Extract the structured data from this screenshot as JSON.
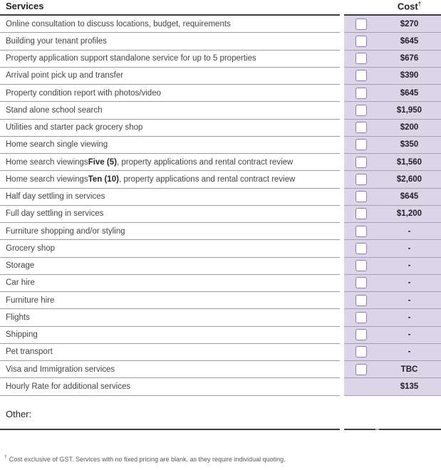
{
  "colors": {
    "lavender_bg": "#dcd5e8",
    "checkbox_border": "#8b7bc0",
    "header_rule": "#3c3c3c",
    "row_rule_white_area": "#9c9c9c",
    "row_rule_lavender_area": "#a59fb2",
    "service_text": "#44444a",
    "cost_text": "#1e1e26",
    "footnote_text": "#58585e"
  },
  "header": {
    "services_label": "Services",
    "cost_label": "Cost",
    "cost_superscript": "†"
  },
  "rows": [
    {
      "pre": "Online consultation to discuss locations, budget, requirements",
      "bold": "",
      "post": "",
      "cost": "$270",
      "checkbox": true
    },
    {
      "pre": "Building your tenant profiles",
      "bold": "",
      "post": "",
      "cost": "$645",
      "checkbox": true
    },
    {
      "pre": "Property application support standalone service for up to 5 properties",
      "bold": "",
      "post": "",
      "cost": "$676",
      "checkbox": true
    },
    {
      "pre": "Arrival point pick up and transfer",
      "bold": "",
      "post": "",
      "cost": "$390",
      "checkbox": true
    },
    {
      "pre": "Property condition report with photos/video",
      "bold": "",
      "post": "",
      "cost": "$645",
      "checkbox": true
    },
    {
      "pre": "Stand alone school search",
      "bold": "",
      "post": "",
      "cost": "$1,950",
      "checkbox": true
    },
    {
      "pre": "Utilities and starter pack grocery shop",
      "bold": "",
      "post": "",
      "cost": "$200",
      "checkbox": true
    },
    {
      "pre": "Home search single viewing",
      "bold": "",
      "post": "",
      "cost": "$350",
      "checkbox": true
    },
    {
      "pre": "Home search viewings ",
      "bold": "Five (5)",
      "post": ", property applications and rental contract review",
      "cost": "$1,560",
      "checkbox": true
    },
    {
      "pre": "Home search viewings ",
      "bold": "Ten (10)",
      "post": ", property applications and rental contract review",
      "cost": "$2,600",
      "checkbox": true
    },
    {
      "pre": "Half day settling in services",
      "bold": "",
      "post": "",
      "cost": "$645",
      "checkbox": true
    },
    {
      "pre": "Full day settling in services",
      "bold": "",
      "post": "",
      "cost": "$1,200",
      "checkbox": true
    },
    {
      "pre": "Furniture shopping and/or styling",
      "bold": "",
      "post": "",
      "cost": "-",
      "checkbox": true
    },
    {
      "pre": "Grocery shop",
      "bold": "",
      "post": "",
      "cost": "-",
      "checkbox": true
    },
    {
      "pre": "Storage",
      "bold": "",
      "post": "",
      "cost": "-",
      "checkbox": true
    },
    {
      "pre": "Car hire",
      "bold": "",
      "post": "",
      "cost": "-",
      "checkbox": true
    },
    {
      "pre": "Furniture hire",
      "bold": "",
      "post": "",
      "cost": "-",
      "checkbox": true
    },
    {
      "pre": "Flights",
      "bold": "",
      "post": "",
      "cost": "-",
      "checkbox": true
    },
    {
      "pre": "Shipping",
      "bold": "",
      "post": "",
      "cost": "-",
      "checkbox": true
    },
    {
      "pre": "Pet transport",
      "bold": "",
      "post": "",
      "cost": "-",
      "checkbox": true
    },
    {
      "pre": "Visa and Immigration services",
      "bold": "",
      "post": "",
      "cost": "TBC",
      "checkbox": true
    },
    {
      "pre": "Hourly Rate for additional services",
      "bold": "",
      "post": "",
      "cost": "$135",
      "checkbox": false
    }
  ],
  "other_label": "Other:",
  "footnote": {
    "symbol": "†",
    "text": "Cost exclusive of GST. Services with no fixed pricing are blank, as they require individual quoting."
  }
}
